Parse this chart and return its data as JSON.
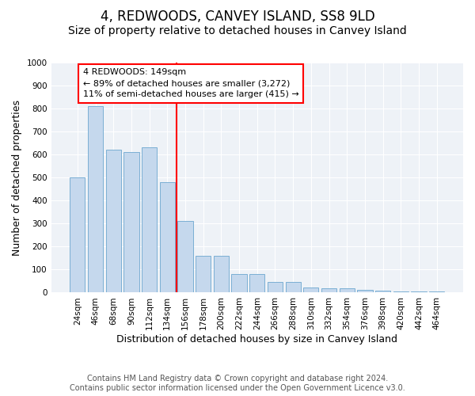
{
  "title": "4, REDWOODS, CANVEY ISLAND, SS8 9LD",
  "subtitle": "Size of property relative to detached houses in Canvey Island",
  "xlabel": "Distribution of detached houses by size in Canvey Island",
  "ylabel": "Number of detached properties",
  "footer_line1": "Contains HM Land Registry data © Crown copyright and database right 2024.",
  "footer_line2": "Contains public sector information licensed under the Open Government Licence v3.0.",
  "categories": [
    "24sqm",
    "46sqm",
    "68sqm",
    "90sqm",
    "112sqm",
    "134sqm",
    "156sqm",
    "178sqm",
    "200sqm",
    "222sqm",
    "244sqm",
    "266sqm",
    "288sqm",
    "310sqm",
    "332sqm",
    "354sqm",
    "376sqm",
    "398sqm",
    "420sqm",
    "442sqm",
    "464sqm"
  ],
  "values": [
    500,
    810,
    620,
    610,
    630,
    480,
    310,
    160,
    160,
    80,
    80,
    45,
    45,
    22,
    20,
    20,
    11,
    7,
    4,
    4,
    4
  ],
  "bar_color": "#c5d8ed",
  "bar_edge_color": "#7bafd4",
  "vline_x": 5.5,
  "vline_color": "red",
  "annotation_line1": "4 REDWOODS: 149sqm",
  "annotation_line2": "← 89% of detached houses are smaller (3,272)",
  "annotation_line3": "11% of semi-detached houses are larger (415) →",
  "annotation_box_color": "white",
  "annotation_box_edge_color": "red",
  "ylim": [
    0,
    1000
  ],
  "yticks": [
    0,
    100,
    200,
    300,
    400,
    500,
    600,
    700,
    800,
    900,
    1000
  ],
  "background_color": "#ffffff",
  "plot_bg_color": "#eef2f7",
  "title_fontsize": 12,
  "subtitle_fontsize": 10,
  "axis_label_fontsize": 9,
  "tick_fontsize": 7.5,
  "footer_fontsize": 7,
  "annotation_fontsize": 8
}
